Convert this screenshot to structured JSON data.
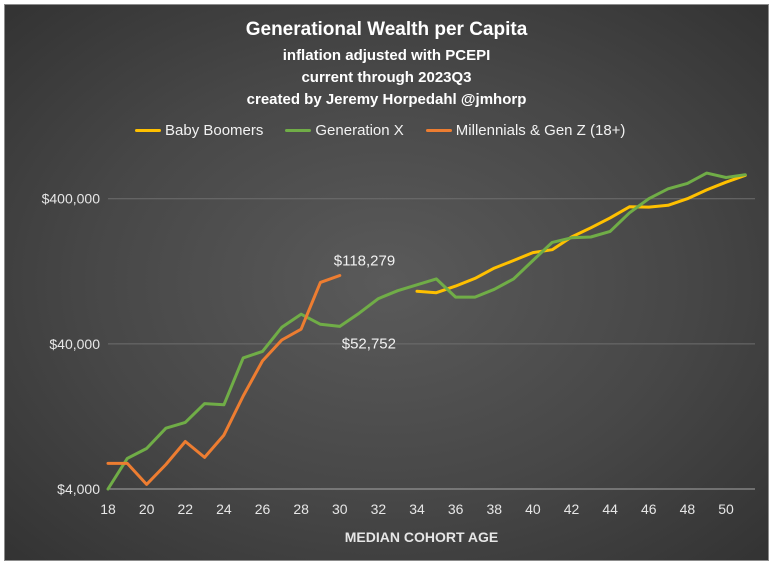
{
  "chart_data": {
    "type": "line",
    "title": "Generational Wealth per Capita",
    "subtitles": [
      "inflation adjusted with PCEPI",
      "current through 2023Q3",
      "created by Jeremy Horpedahl @jmhorp"
    ],
    "xlabel": "MEDIAN COHORT AGE",
    "ylabel": "",
    "yscale": "log",
    "ylim": [
      4000,
      800000
    ],
    "xlim": [
      18,
      51.5
    ],
    "x_ticks": [
      18,
      20,
      22,
      24,
      26,
      28,
      30,
      32,
      34,
      36,
      38,
      40,
      42,
      44,
      46,
      48,
      50
    ],
    "y_ticks": [
      {
        "value": 4000,
        "label": "$4,000"
      },
      {
        "value": 40000,
        "label": "$40,000"
      },
      {
        "value": 400000,
        "label": "$400,000"
      }
    ],
    "grid": "horizontal",
    "legend_position": "top",
    "series": [
      {
        "name": "Baby Boomers",
        "color": "#ffc000",
        "x": [
          34,
          35,
          36,
          37,
          38,
          39,
          40,
          41,
          42,
          43,
          44,
          45,
          46,
          47,
          48,
          49,
          50,
          51
        ],
        "y": [
          92000,
          90000,
          100000,
          113000,
          133000,
          150000,
          170000,
          178000,
          218000,
          252000,
          295000,
          352000,
          350000,
          360000,
          400000,
          460000,
          520000,
          580000
        ]
      },
      {
        "name": "Generation X",
        "color": "#70ad47",
        "x": [
          18,
          19,
          20,
          21,
          22,
          23,
          24,
          25,
          26,
          27,
          28,
          29,
          30,
          31,
          32,
          33,
          34,
          35,
          36,
          37,
          38,
          39,
          40,
          41,
          42,
          43,
          44,
          45,
          46,
          47,
          48,
          49,
          50,
          51
        ],
        "y": [
          4000,
          6500,
          7600,
          10500,
          11500,
          15500,
          15200,
          32000,
          35500,
          52000,
          64000,
          54500,
          52752,
          65000,
          82000,
          93000,
          102000,
          112000,
          84000,
          84000,
          95000,
          112000,
          150000,
          200000,
          215000,
          218000,
          238000,
          320000,
          400000,
          468000,
          510000,
          600000,
          560000,
          585000
        ]
      },
      {
        "name": "Millennials & Gen Z (18+)",
        "color": "#ed7d31",
        "x": [
          18,
          19,
          20,
          21,
          22,
          23,
          24,
          25,
          26,
          27,
          28,
          29,
          30
        ],
        "y": [
          6000,
          6000,
          4300,
          5900,
          8500,
          6600,
          9400,
          17500,
          30500,
          42500,
          50500,
          106000,
          118279
        ]
      }
    ],
    "annotations": [
      {
        "text": "$118,279",
        "x": 30,
        "y": 118279
      },
      {
        "text": "$52,752",
        "x": 30,
        "y": 52752
      }
    ]
  }
}
